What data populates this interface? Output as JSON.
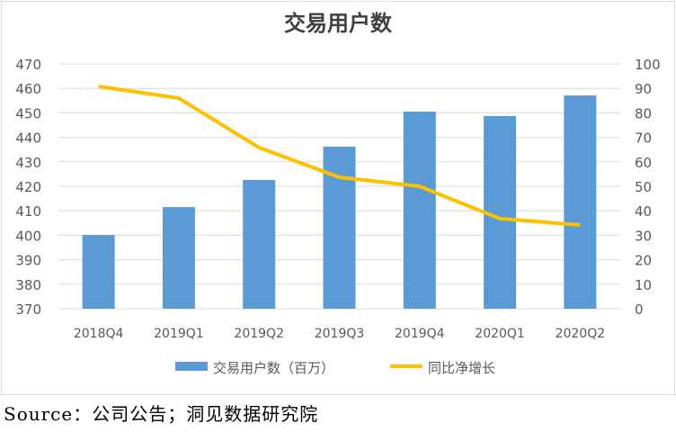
{
  "chart_data": {
    "type": "bar+line",
    "title": "交易用户数",
    "categories": [
      "2018Q4",
      "2019Q1",
      "2019Q2",
      "2019Q3",
      "2019Q4",
      "2020Q1",
      "2020Q2"
    ],
    "series": [
      {
        "name": "交易用户数（百万）",
        "type": "bar",
        "axis": "left",
        "color": "#5b9bd5",
        "values": [
          400.1,
          411.5,
          422.6,
          436.2,
          450.5,
          448.7,
          457.1
        ]
      },
      {
        "name": "同比净增长",
        "type": "line",
        "axis": "right",
        "color": "#ffc000",
        "values": [
          90.8,
          86.0,
          65.8,
          53.7,
          50.0,
          36.8,
          34.2
        ]
      }
    ],
    "left_axis": {
      "min": 370,
      "max": 470,
      "step": 10,
      "ticks": [
        "370",
        "380",
        "390",
        "400",
        "410",
        "420",
        "430",
        "440",
        "450",
        "460",
        "470"
      ]
    },
    "right_axis": {
      "min": 0,
      "max": 100,
      "step": 10,
      "ticks": [
        "0",
        "10",
        "20",
        "30",
        "40",
        "50",
        "60",
        "70",
        "80",
        "90",
        "100"
      ]
    },
    "grid": true,
    "legend_position": "bottom"
  },
  "source": "Source：公司公告；洞见数据研究院"
}
